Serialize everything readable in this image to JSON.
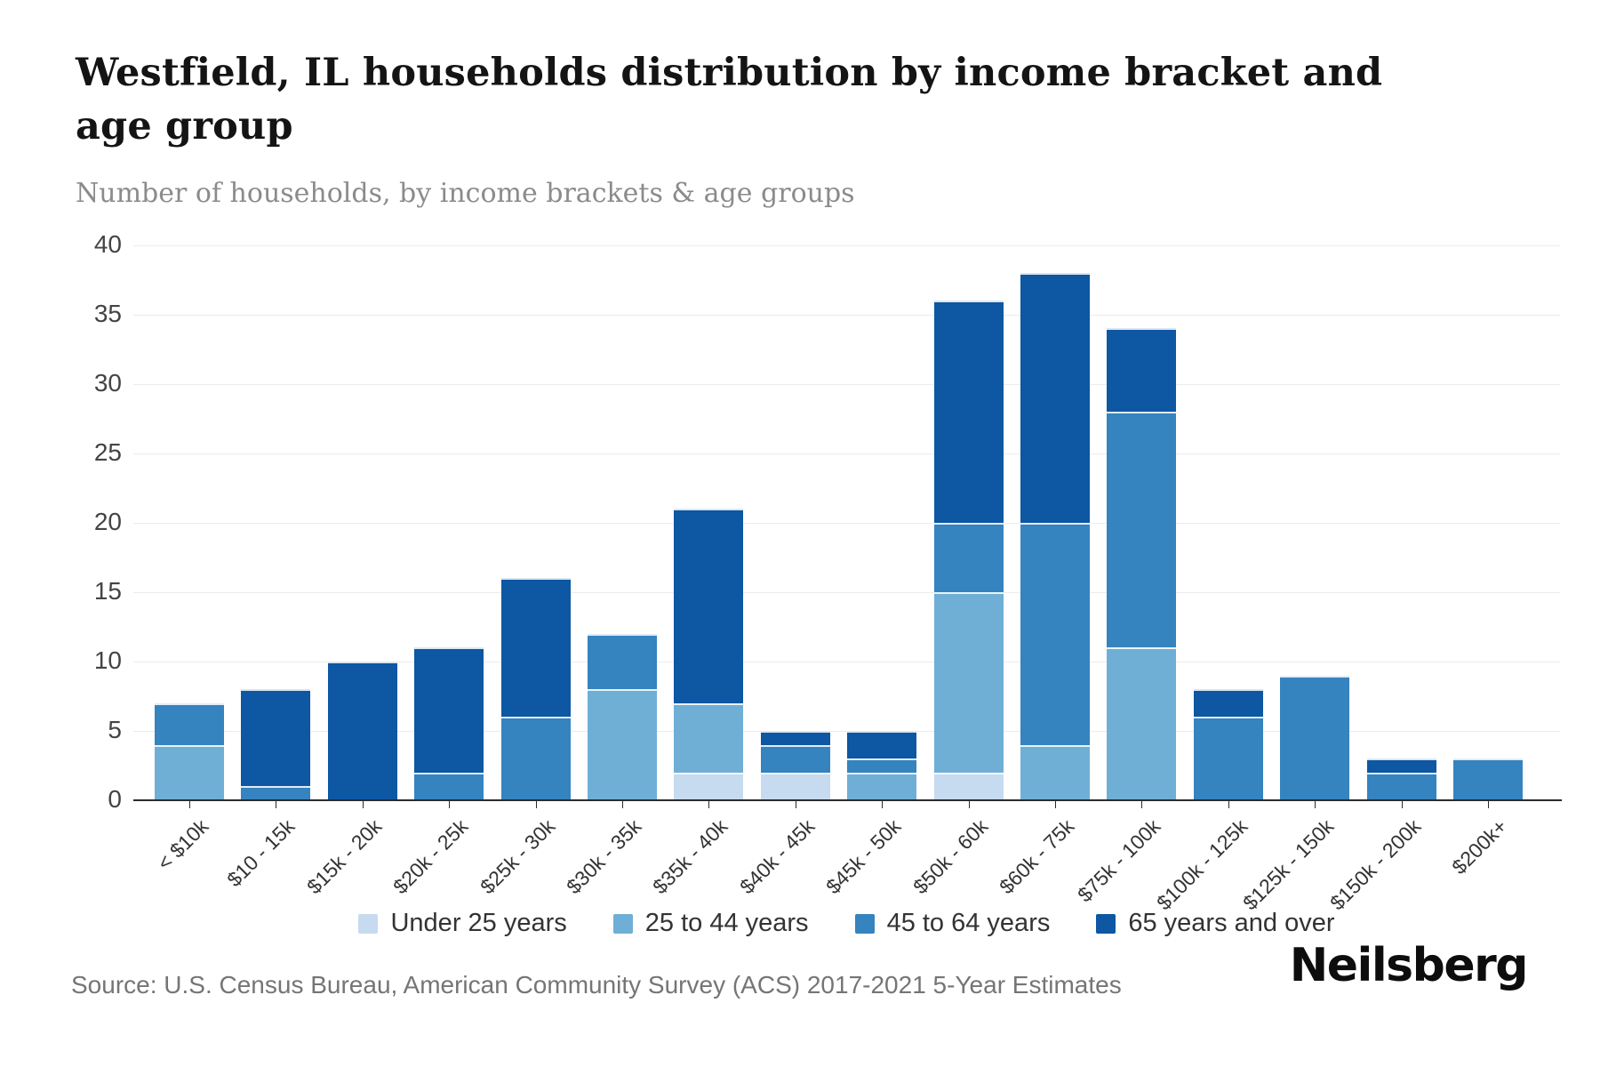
{
  "header": {
    "title": "Westfield, IL households distribution by income bracket and age group",
    "subtitle": "Number of households, by income brackets & age groups"
  },
  "chart_data": {
    "type": "bar",
    "stacked": true,
    "title": "Westfield, IL households distribution by income bracket and age group",
    "subtitle": "Number of households, by income brackets & age groups",
    "xlabel": "",
    "ylabel": "Number of households",
    "ylim": [
      0,
      40
    ],
    "y_ticks": [
      0,
      5,
      10,
      15,
      20,
      25,
      30,
      35,
      40
    ],
    "gridline_values": [
      5,
      10,
      15,
      20,
      25,
      30,
      35,
      40
    ],
    "grid": true,
    "legend_position": "bottom",
    "categories": [
      "< $10k",
      "$10 - 15k",
      "$15k - 20k",
      "$20k - 25k",
      "$25k - 30k",
      "$30k - 35k",
      "$35k - 40k",
      "$40k - 45k",
      "$45k - 50k",
      "$50k - 60k",
      "$60k - 75k",
      "$75k - 100k",
      "$100k - 125k",
      "$125k - 150k",
      "$150k - 200k",
      "$200k+"
    ],
    "series": [
      {
        "name": "Under 25 years",
        "color": "#c6dbef",
        "values": [
          0,
          0,
          0,
          0,
          0,
          0,
          2,
          2,
          0,
          2,
          0,
          0,
          0,
          0,
          0,
          0
        ]
      },
      {
        "name": "25 to 44 years",
        "color": "#6fafd6",
        "values": [
          4,
          0,
          0,
          0,
          0,
          8,
          5,
          0,
          2,
          13,
          4,
          11,
          0,
          0,
          0,
          0
        ]
      },
      {
        "name": "45 to 64 years",
        "color": "#3583bf",
        "values": [
          3,
          1,
          0,
          2,
          6,
          4,
          0,
          2,
          1,
          5,
          16,
          17,
          6,
          9,
          2,
          3
        ]
      },
      {
        "name": "65 years and over",
        "color": "#0d57a3",
        "values": [
          0,
          7,
          10,
          9,
          10,
          0,
          14,
          1,
          2,
          16,
          18,
          6,
          2,
          0,
          1,
          0
        ]
      }
    ],
    "bar_totals": [
      7,
      8,
      10,
      11,
      16,
      12,
      21,
      5,
      5,
      36,
      38,
      34,
      8,
      9,
      3,
      3
    ]
  },
  "footer": {
    "source": "Source: U.S. Census Bureau, American Community Survey (ACS) 2017-2021 5-Year Estimates",
    "logo": "Neilsberg"
  }
}
